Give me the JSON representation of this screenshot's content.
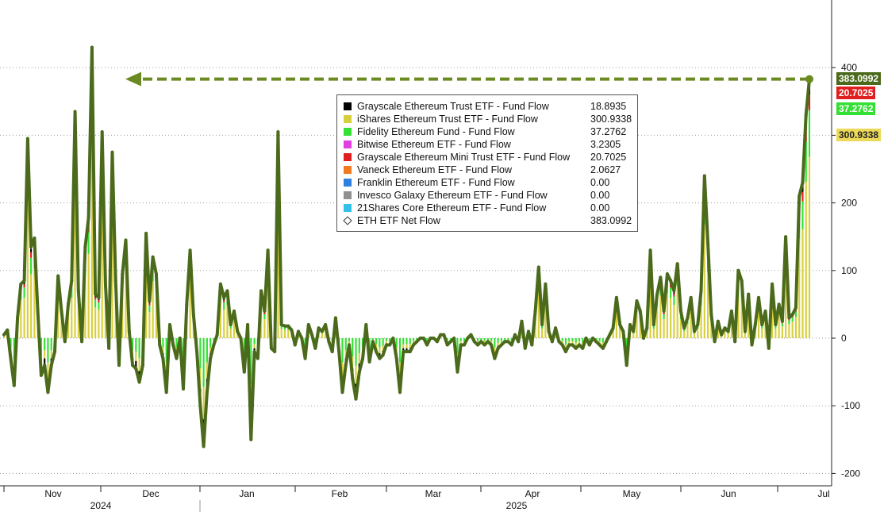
{
  "chart_data": {
    "type": "bar",
    "title": "",
    "xlabel": "",
    "ylabel": "",
    "ylim": [
      -210,
      440
    ],
    "grid": true,
    "y_ticks": [
      -200,
      -100,
      0,
      100,
      200,
      300,
      400
    ],
    "y_tick_labels": [
      "-200",
      "-100",
      "0",
      "100",
      "200",
      "300",
      "400"
    ],
    "months": [
      "Nov",
      "Dec",
      "Jan",
      "Feb",
      "Mar",
      "Apr",
      "May",
      "Jun",
      "Jul"
    ],
    "years": [
      "2024",
      "2025"
    ],
    "legend_placement": "top-center",
    "series": [
      {
        "name": "Grayscale Ethereum Trust ETF - Fund Flow",
        "color": "#000000",
        "last_value": "18.8935"
      },
      {
        "name": "iShares Ethereum Trust ETF - Fund Flow",
        "color": "#d8cf3c",
        "last_value": "300.9338"
      },
      {
        "name": "Fidelity Ethereum Fund - Fund Flow",
        "color": "#33e033",
        "last_value": "37.2762"
      },
      {
        "name": "Bitwise Ethereum ETF - Fund Flow",
        "color": "#e040e0",
        "last_value": "3.2305"
      },
      {
        "name": "Grayscale Ethereum Mini Trust ETF - Fund Flow",
        "color": "#e02020",
        "last_value": "20.7025"
      },
      {
        "name": "Vaneck Ethereum ETF - Fund Flow",
        "color": "#f07a20",
        "last_value": "2.0627"
      },
      {
        "name": "Franklin Ethereum ETF - Fund Flow",
        "color": "#2f7fe0",
        "last_value": "0.00"
      },
      {
        "name": "Invesco Galaxy Ethereum ETF - Fund Flow",
        "color": "#909090",
        "last_value": "0.00"
      },
      {
        "name": "21Shares Core Ethereum ETF - Fund Flow",
        "color": "#35c0e8",
        "last_value": "0.00"
      },
      {
        "name": "ETH ETF Net Flow",
        "color": "#4b6a1c",
        "last_value": "383.0992"
      }
    ],
    "right_tags": [
      {
        "text": "383.0992",
        "color": "#4b6a1c",
        "fg": "#ffffff"
      },
      {
        "text": "20.7025",
        "color": "#e02020",
        "fg": "#ffffff"
      },
      {
        "text": "37.2762",
        "color": "#33e033",
        "fg": "#ffffff"
      },
      {
        "text": "300.9338",
        "color": "#ecd95a",
        "fg": "#222222"
      }
    ],
    "net_flow": [
      5,
      12,
      -30,
      -70,
      30,
      80,
      85,
      295,
      135,
      148,
      40,
      -55,
      -40,
      -80,
      -40,
      -20,
      92,
      40,
      -5,
      50,
      85,
      335,
      70,
      -5,
      135,
      178,
      430,
      65,
      60,
      305,
      80,
      -15,
      275,
      85,
      -40,
      95,
      145,
      10,
      -40,
      -45,
      -65,
      -40,
      155,
      55,
      120,
      95,
      -10,
      -30,
      -80,
      20,
      -10,
      -30,
      0,
      -75,
      50,
      130,
      35,
      -20,
      -100,
      -160,
      -80,
      -30,
      -10,
      5,
      80,
      60,
      70,
      20,
      40,
      10,
      0,
      -50,
      20,
      -150,
      -20,
      -30,
      70,
      40,
      130,
      -15,
      -20,
      305,
      20,
      18,
      18,
      12,
      -10,
      10,
      0,
      -30,
      20,
      5,
      -15,
      15,
      10,
      20,
      -5,
      -20,
      30,
      -20,
      -80,
      -40,
      -10,
      -60,
      -90,
      -50,
      -30,
      20,
      -35,
      -5,
      -20,
      -30,
      -25,
      -10,
      -10,
      0,
      -30,
      -80,
      -20,
      -20,
      -20,
      -10,
      -5,
      0,
      0,
      -10,
      0,
      0,
      -5,
      5,
      5,
      -10,
      -5,
      0,
      -50,
      -10,
      -10,
      0,
      5,
      -5,
      -10,
      -5,
      -10,
      -5,
      -10,
      -30,
      -15,
      -10,
      -5,
      -5,
      -10,
      5,
      -5,
      25,
      -15,
      10,
      -10,
      40,
      105,
      20,
      80,
      10,
      -5,
      15,
      -5,
      -10,
      -20,
      -10,
      -10,
      -15,
      -10,
      -15,
      0,
      -10,
      0,
      -5,
      -10,
      -15,
      -5,
      5,
      15,
      60,
      20,
      10,
      -40,
      20,
      10,
      55,
      40,
      0,
      15,
      130,
      20,
      65,
      90,
      40,
      95,
      85,
      70,
      110,
      40,
      15,
      30,
      60,
      10,
      20,
      70,
      240,
      140,
      35,
      -5,
      25,
      5,
      15,
      10,
      40,
      -5,
      100,
      85,
      10,
      65,
      -10,
      20,
      60,
      20,
      40,
      -15,
      80,
      20,
      50,
      25,
      150,
      30,
      35,
      45,
      210,
      230,
      330,
      383
    ]
  }
}
